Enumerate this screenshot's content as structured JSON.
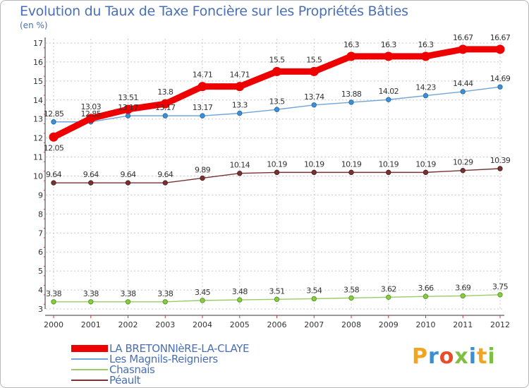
{
  "chart_data": {
    "type": "line",
    "title": "Evolution du Taux de Taxe Foncière sur les Propriétés Bâties",
    "subtitle": "(en %)",
    "x": [
      "2000",
      "2001",
      "2002",
      "2003",
      "2004",
      "2005",
      "2006",
      "2007",
      "2008",
      "2009",
      "2010",
      "2011",
      "2012"
    ],
    "ylim": [
      3,
      17
    ],
    "yticks": [
      "3",
      "4",
      "5",
      "6",
      "7",
      "8",
      "9",
      "10",
      "11",
      "12",
      "13",
      "14",
      "15",
      "16",
      "17"
    ],
    "grid": true,
    "series": [
      {
        "key": "lbc",
        "name": "LA BRETONNIèRE-LA-CLAYE",
        "color": "#ee0000",
        "values": [
          12.05,
          13.03,
          13.51,
          13.8,
          14.71,
          14.71,
          15.5,
          15.5,
          16.3,
          16.3,
          16.3,
          16.67,
          16.67
        ],
        "labels": [
          "12.05",
          "13.03",
          "13.51",
          "13.8",
          "14.71",
          "14.71",
          "15.5",
          "15.5",
          "16.3",
          "16.3",
          "16.3",
          "16.67",
          "16.67"
        ]
      },
      {
        "key": "mag",
        "name": "Les Magnils-Reigniers",
        "color": "#6fa5d8",
        "values": [
          12.85,
          12.85,
          13.17,
          13.17,
          13.17,
          13.3,
          13.5,
          13.74,
          13.88,
          14.02,
          14.23,
          14.44,
          14.69
        ],
        "labels": [
          "12.85",
          "12.85",
          "13.17",
          "13.17",
          "13.17",
          "13.3",
          "13.5",
          "13.74",
          "13.88",
          "14.02",
          "14.23",
          "14.44",
          "14.69"
        ]
      },
      {
        "key": "cha",
        "name": "Chasnais",
        "color": "#99cc66",
        "values": [
          3.38,
          3.38,
          3.38,
          3.38,
          3.45,
          3.48,
          3.51,
          3.54,
          3.58,
          3.62,
          3.66,
          3.69,
          3.75
        ],
        "labels": [
          "3.38",
          "3.38",
          "3.38",
          "3.38",
          "3.45",
          "3.48",
          "3.51",
          "3.54",
          "3.58",
          "3.62",
          "3.66",
          "3.69",
          "3.75"
        ]
      },
      {
        "key": "pea",
        "name": "Péault",
        "color": "#773333",
        "values": [
          9.64,
          9.64,
          9.64,
          9.64,
          9.89,
          10.14,
          10.19,
          10.19,
          10.19,
          10.19,
          10.19,
          10.29,
          10.39
        ],
        "labels": [
          "9.64",
          "9.64",
          "9.64",
          "9.64",
          "9.89",
          "10.14",
          "10.19",
          "10.19",
          "10.19",
          "10.19",
          "10.19",
          "10.29",
          "10.39"
        ]
      }
    ]
  },
  "brand": {
    "letters": [
      "P",
      "r",
      "o",
      "x",
      "i",
      "t",
      "i"
    ],
    "colors": [
      "#f2a51f",
      "#3a8fd1",
      "#e94c2b",
      "#7fbf3f",
      "#3a8fd1",
      "#f2a51f",
      "#7fbf3f"
    ]
  }
}
